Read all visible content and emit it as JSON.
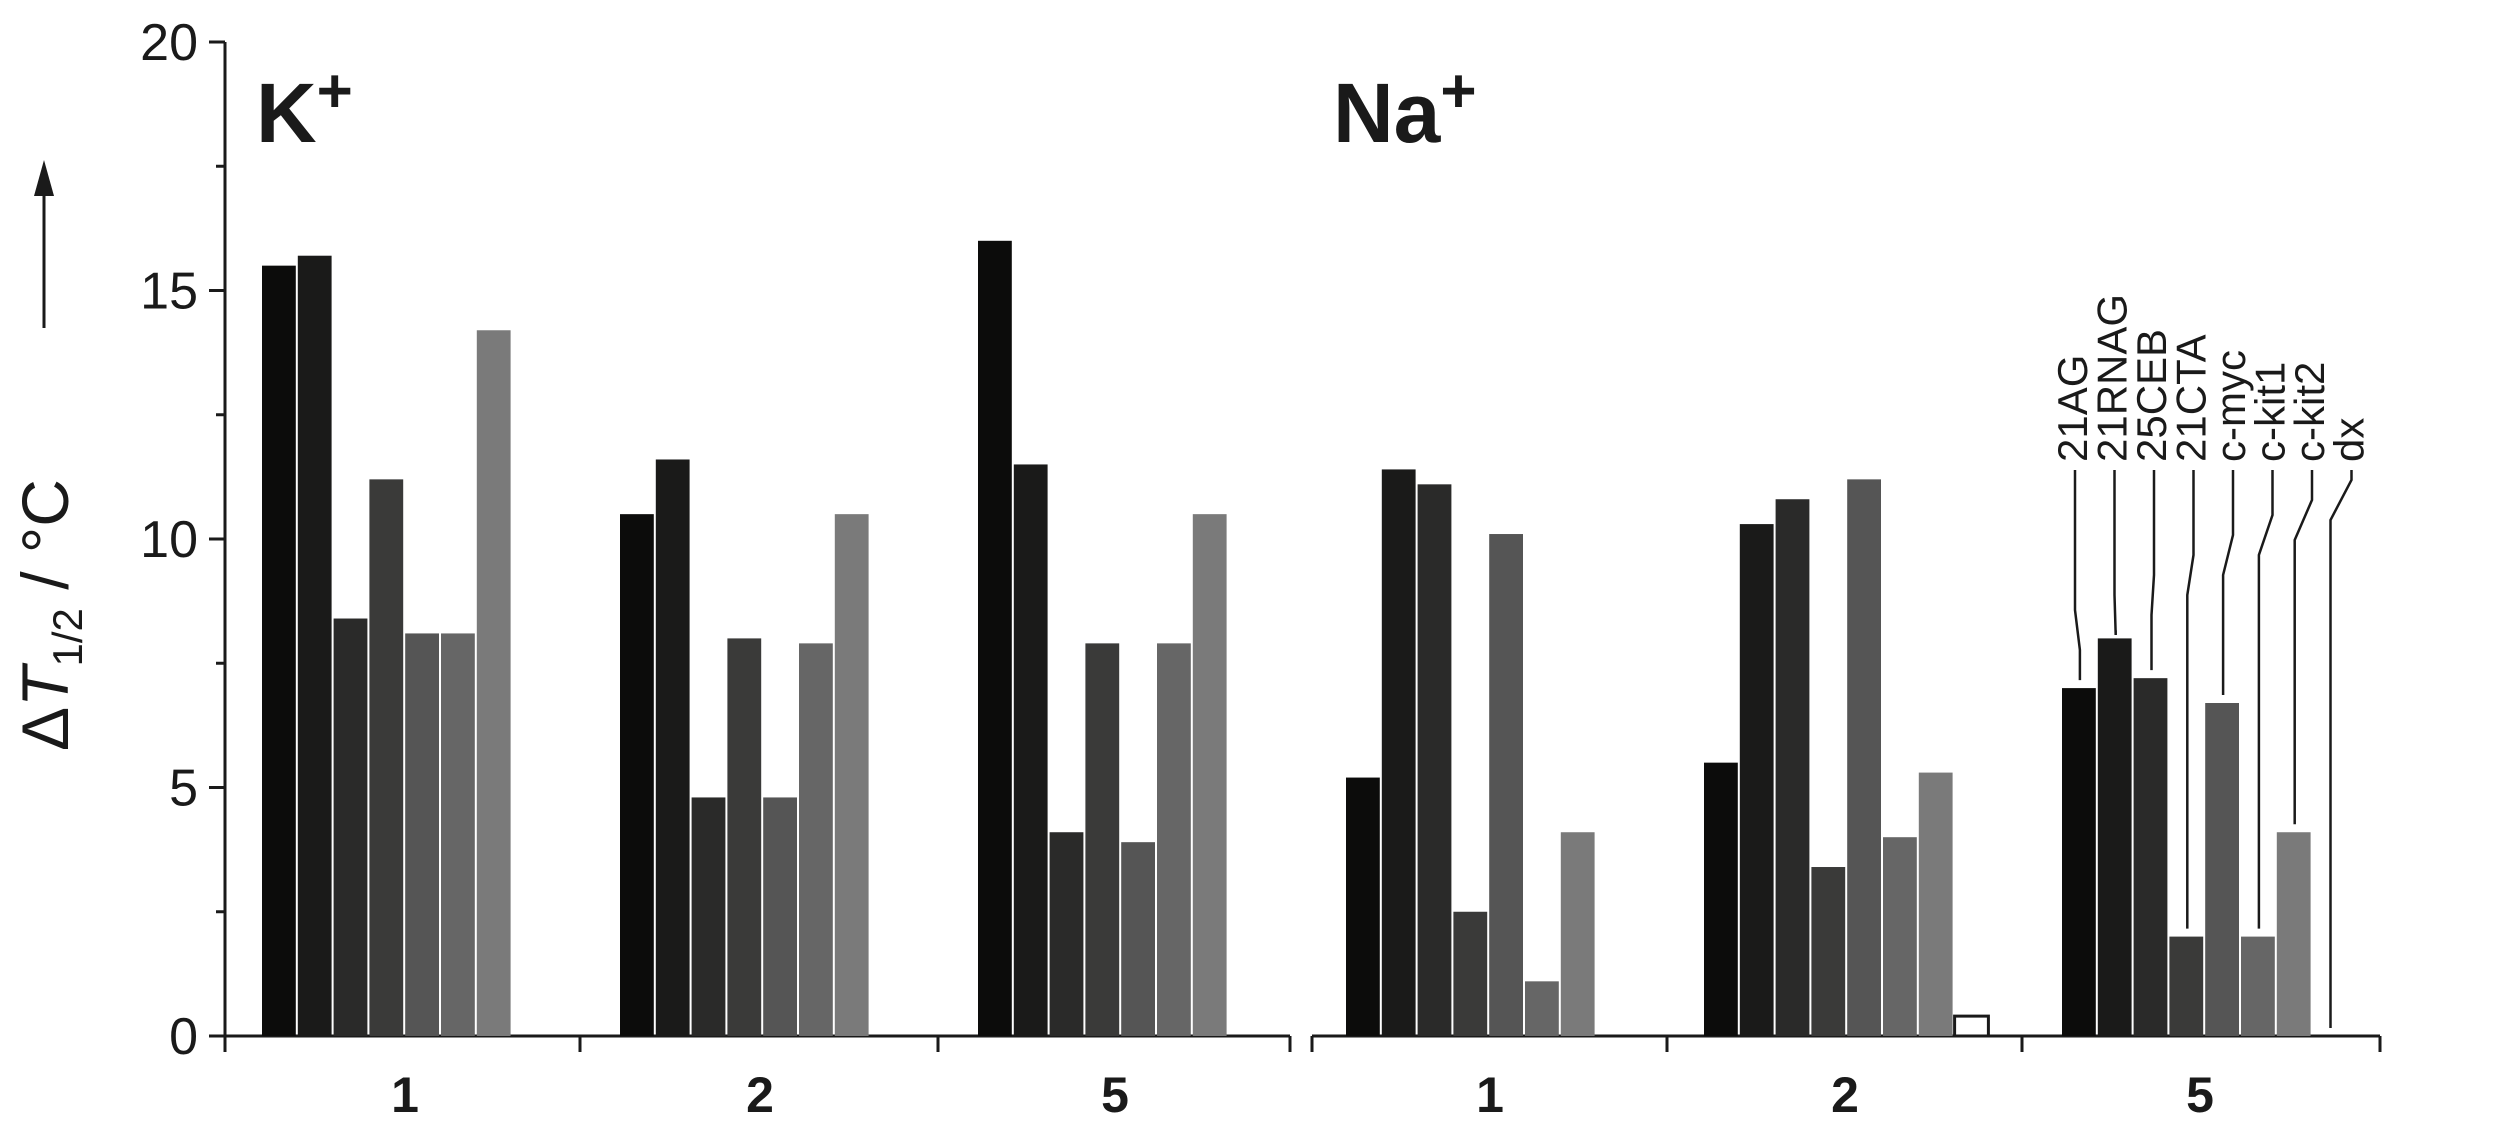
{
  "chart_data": {
    "type": "bar",
    "ylabel": {
      "delta": "Δ",
      "T": "T",
      "sub": "1/2",
      "rest": " / °C"
    },
    "yticks": [
      "0",
      "5",
      "10",
      "15",
      "20"
    ],
    "ylim": [
      0,
      20
    ],
    "series_names": [
      "21AG",
      "21RNAG",
      "25CEB",
      "21CTA",
      "c-myc",
      "c-kit1",
      "c-kit2",
      "dx"
    ],
    "series_colors": [
      "#0c0c0b",
      "#1a1a19",
      "#2a2a29",
      "#3a3a39",
      "#555555",
      "#666666",
      "#7a7a7a",
      "#ffffff"
    ],
    "panels": [
      {
        "label": "K",
        "sup": "+",
        "groups": [
          {
            "category": "1",
            "values": [
              15.5,
              15.7,
              8.4,
              11.2,
              8.1,
              8.1,
              14.2,
              null
            ]
          },
          {
            "category": "2",
            "values": [
              10.5,
              11.6,
              4.8,
              8.0,
              4.8,
              7.9,
              10.5,
              null
            ]
          },
          {
            "category": "5",
            "values": [
              16.0,
              11.5,
              4.1,
              7.9,
              3.9,
              7.9,
              10.5,
              null
            ]
          }
        ]
      },
      {
        "label": "Na",
        "sup": "+",
        "groups": [
          {
            "category": "1",
            "values": [
              5.2,
              11.4,
              11.1,
              2.5,
              10.1,
              1.1,
              4.1,
              null
            ]
          },
          {
            "category": "2",
            "values": [
              5.5,
              10.3,
              10.8,
              3.4,
              11.2,
              4.0,
              5.3,
              0.4
            ]
          },
          {
            "category": "5",
            "values": [
              7.0,
              8.0,
              7.2,
              2.0,
              6.7,
              2.0,
              4.1,
              0
            ]
          }
        ]
      }
    ]
  }
}
